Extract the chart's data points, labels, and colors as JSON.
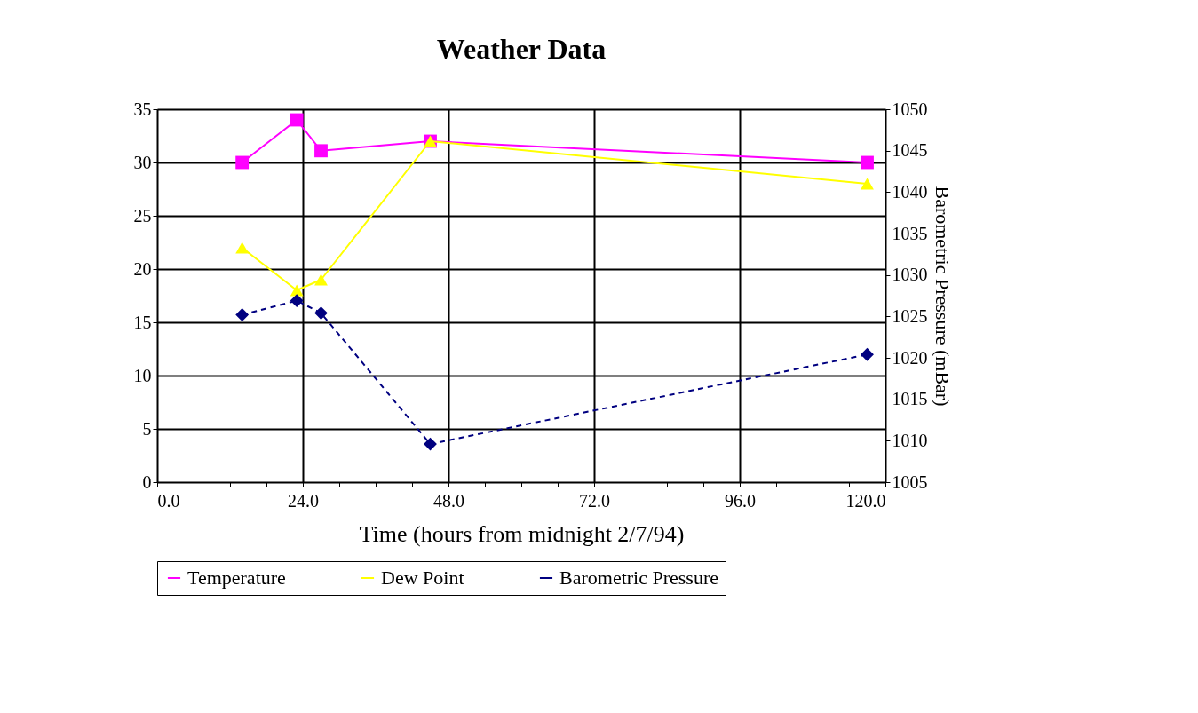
{
  "chart_data": {
    "type": "line",
    "title": "Weather Data",
    "xlabel": "Time (hours from midnight 2/7/94)",
    "y2label": "Barometric Pressure (mBar)",
    "xlim": [
      0,
      120
    ],
    "xticks": [
      {
        "value": 0,
        "label": "0.0"
      },
      {
        "value": 6,
        "label": null
      },
      {
        "value": 12,
        "label": null
      },
      {
        "value": 18,
        "label": null
      },
      {
        "value": 24,
        "label": "24.0"
      },
      {
        "value": 30,
        "label": null
      },
      {
        "value": 36,
        "label": null
      },
      {
        "value": 42,
        "label": null
      },
      {
        "value": 48,
        "label": "48.0"
      },
      {
        "value": 54,
        "label": null
      },
      {
        "value": 60,
        "label": null
      },
      {
        "value": 66,
        "label": null
      },
      {
        "value": 72,
        "label": "72.0"
      },
      {
        "value": 78,
        "label": null
      },
      {
        "value": 84,
        "label": null
      },
      {
        "value": 90,
        "label": null
      },
      {
        "value": 96,
        "label": "96.0"
      },
      {
        "value": 102,
        "label": null
      },
      {
        "value": 108,
        "label": null
      },
      {
        "value": 114,
        "label": null
      },
      {
        "value": 120,
        "label": "120.0"
      }
    ],
    "ylim": [
      0,
      35
    ],
    "yticks": [
      0,
      5,
      10,
      15,
      20,
      25,
      30,
      35
    ],
    "y2lim": [
      1005,
      1050
    ],
    "y2ticks": [
      1005,
      1010,
      1015,
      1020,
      1025,
      1030,
      1035,
      1040,
      1045,
      1050
    ],
    "grid": true,
    "legend": "bottom",
    "series": [
      {
        "name": "Temperature",
        "color": "#ff00ff",
        "marker": "square",
        "line_style": "solid",
        "x": [
          14,
          23,
          27,
          45,
          117
        ],
        "values": [
          30,
          34,
          31.1,
          32,
          30
        ]
      },
      {
        "name": "Dew Point",
        "color": "#ffff00",
        "marker": "triangle",
        "line_style": "solid",
        "x": [
          14,
          23,
          27,
          45,
          117
        ],
        "values": [
          22,
          18,
          19,
          32,
          28
        ]
      },
      {
        "name": "Barometric Pressure",
        "color": "#000080",
        "marker": "diamond",
        "line_style": "dashed",
        "axis": "y2",
        "x": [
          14,
          23,
          27,
          45,
          117
        ],
        "values": [
          1025.2,
          1026.9,
          1025.4,
          1009.6,
          1020.4
        ]
      }
    ]
  }
}
